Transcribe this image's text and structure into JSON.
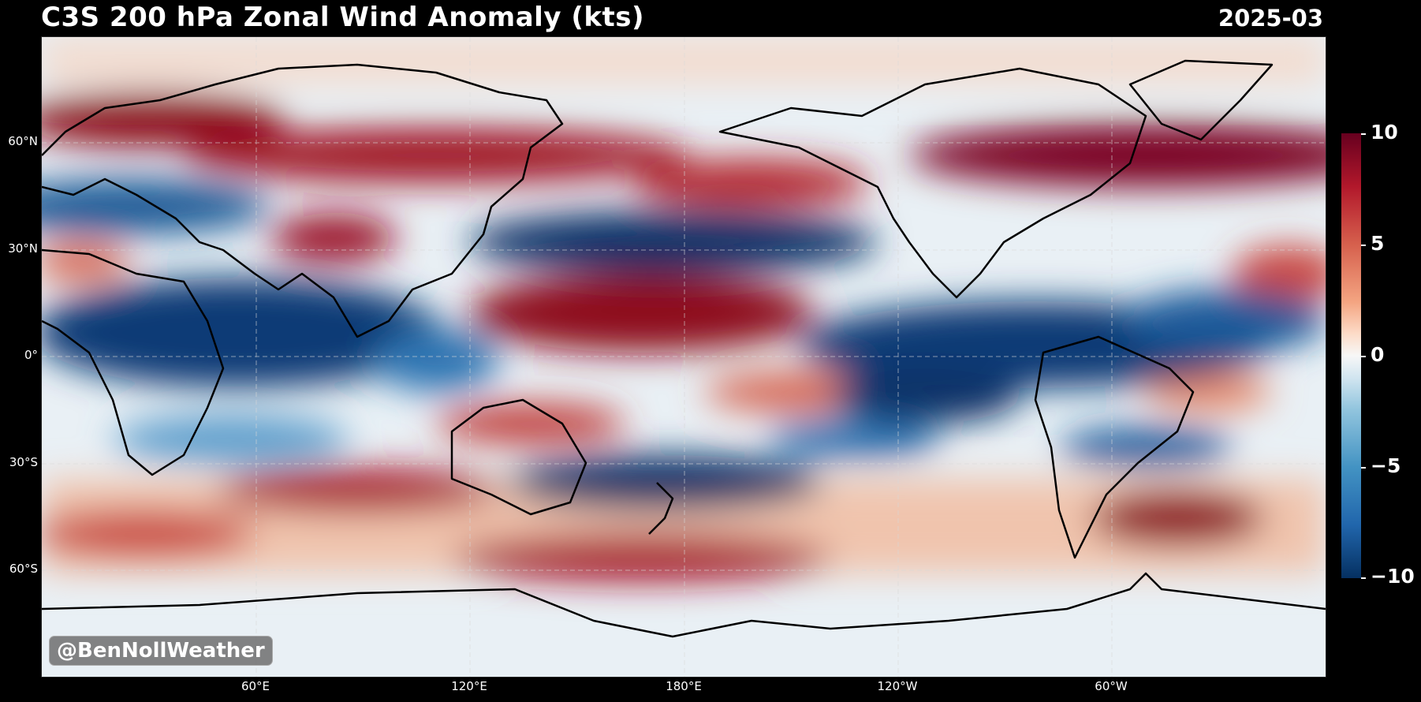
{
  "header": {
    "title": "C3S 200 hPa Zonal Wind Anomaly (kts)",
    "date": "2025-03"
  },
  "axes": {
    "lat_labels": [
      "60°N",
      "30°N",
      "0°",
      "30°S",
      "60°S"
    ],
    "lon_labels": [
      "60°E",
      "120°E",
      "180°E",
      "120°W",
      "60°W"
    ]
  },
  "colorbar": {
    "ticks": [
      "10",
      "5",
      "0",
      "−5",
      "−10"
    ],
    "range": [
      -10,
      10
    ],
    "colors": [
      "#67001f",
      "#b2182b",
      "#d6604d",
      "#f4a582",
      "#fddbc7",
      "#f7f7f7",
      "#d1e5f0",
      "#92c5de",
      "#4393c3",
      "#2166ac",
      "#053061"
    ]
  },
  "credit": "@BenNollWeather",
  "anomaly_bands": [
    {
      "region": "Scandinavia / N Eurasia 55-70N",
      "sign": "positive"
    },
    {
      "region": "N Pacific 45-55N",
      "sign": "positive"
    },
    {
      "region": "Eastern Canada / N Atlantic 50-60N",
      "sign": "positive"
    },
    {
      "region": "Mid-latitude Pacific 30N",
      "sign": "negative"
    },
    {
      "region": "Tropical Indian Ocean / Africa",
      "sign": "negative"
    },
    {
      "region": "Central tropical Pacific 10N",
      "sign": "positive"
    },
    {
      "region": "Eastern tropical Pacific / Atlantic",
      "sign": "negative"
    },
    {
      "region": "Southern Australia 40S",
      "sign": "negative"
    },
    {
      "region": "Southern Ocean 40-55S",
      "sign": "positive"
    }
  ]
}
